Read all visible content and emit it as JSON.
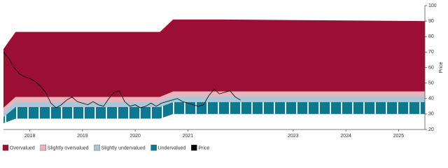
{
  "chart_data": {
    "type": "band",
    "y_label": "Price",
    "x": [
      2017.5,
      2017.73,
      2020.47,
      2020.72,
      2021.7,
      2025.5
    ],
    "series": [
      {
        "name": "Overvalued",
        "color": "#9b0f35",
        "low": [
          34,
          41,
          41,
          44.5,
          44.5,
          44.5
        ],
        "high": [
          72,
          83,
          83,
          91,
          91,
          90
        ]
      },
      {
        "name": "Slightly overvalued",
        "color": "#e9b3b9",
        "low": [
          31,
          38,
          38,
          41.5,
          41.5,
          41.5
        ],
        "high": [
          34,
          41,
          41,
          44.5,
          44.5,
          44.5
        ]
      },
      {
        "name": "Slightly undervalued",
        "color": "#a9c7d6",
        "low": [
          28,
          34.5,
          34.5,
          37.7,
          37.7,
          37.7
        ],
        "high": [
          31,
          38,
          38,
          41.5,
          41.5,
          41.5
        ]
      },
      {
        "name": "Undervalued",
        "color": "#0e7891",
        "low": [
          24,
          27,
          27,
          30,
          30,
          30
        ],
        "high": [
          28,
          34.5,
          34.5,
          37.7,
          37.7,
          37.7
        ]
      }
    ],
    "price": {
      "name": "Price",
      "color": "#000000",
      "x": [
        2017.5,
        2017.6,
        2017.7,
        2017.8,
        2017.9,
        2018.0,
        2018.1,
        2018.2,
        2018.3,
        2018.4,
        2018.5,
        2018.6,
        2018.7,
        2018.8,
        2018.9,
        2019.0,
        2019.1,
        2019.2,
        2019.3,
        2019.4,
        2019.5,
        2019.6,
        2019.7,
        2019.8,
        2019.9,
        2020.0,
        2020.1,
        2020.2,
        2020.3,
        2020.4,
        2020.5,
        2020.6,
        2020.7,
        2020.8,
        2020.9,
        2021.0,
        2021.1,
        2021.2,
        2021.3,
        2021.4,
        2021.5,
        2021.6,
        2021.7,
        2021.8,
        2021.9,
        2022.0
      ],
      "values": [
        70,
        66,
        60,
        56,
        54,
        53,
        51,
        48,
        44,
        37,
        34,
        36,
        39,
        41,
        38,
        37,
        36,
        38,
        36,
        35,
        40,
        44,
        45,
        38,
        35,
        36,
        34,
        35,
        37,
        35,
        37,
        38,
        39,
        40,
        38,
        37,
        36,
        35,
        36,
        42,
        46,
        43,
        44,
        45,
        41,
        39
      ]
    },
    "xlim": [
      2017.5,
      2025.5
    ],
    "xticks": [
      2018,
      2019,
      2020,
      2021,
      2023,
      2024,
      2025
    ],
    "ylim": [
      20,
      100
    ],
    "yticks": [
      20,
      30,
      40,
      50,
      60,
      70,
      80,
      90,
      100
    ]
  }
}
